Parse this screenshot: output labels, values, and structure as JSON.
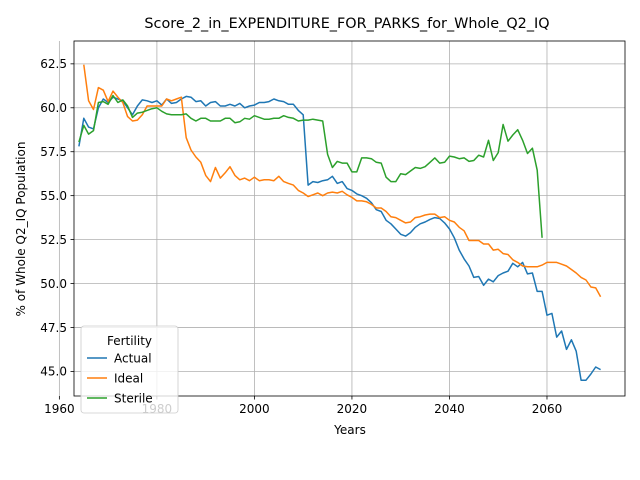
{
  "chart_data": {
    "type": "line",
    "title": "Score_2_in_EXPENDITURE_FOR_PARKS_for_Whole_Q2_IQ",
    "xlabel": "Years",
    "ylabel": "% of Whole Q2_IQ Population",
    "xlim": [
      1963,
      2076
    ],
    "ylim": [
      43.6,
      63.8
    ],
    "xticks": [
      1960,
      1980,
      2000,
      2020,
      2040,
      2060
    ],
    "yticks": [
      45.0,
      47.5,
      50.0,
      52.5,
      55.0,
      57.5,
      60.0,
      62.5
    ],
    "grid": true,
    "legend": {
      "title": "Fertility",
      "position": "lower left"
    },
    "series": [
      {
        "name": "Actual",
        "color": "#1f77b4",
        "points": [
          [
            1964,
            57.8
          ],
          [
            1965,
            59.4
          ],
          [
            1966,
            58.9
          ],
          [
            1967,
            58.8
          ],
          [
            1968,
            60.0
          ],
          [
            1969,
            60.5
          ],
          [
            1970,
            60.3
          ],
          [
            1971,
            60.6
          ],
          [
            1972,
            60.5
          ],
          [
            1973,
            60.4
          ],
          [
            1974,
            60.0
          ],
          [
            1975,
            59.6
          ],
          [
            1976,
            60.1
          ],
          [
            1977,
            60.45
          ],
          [
            1978,
            60.4
          ],
          [
            1979,
            60.3
          ],
          [
            1980,
            60.4
          ],
          [
            1981,
            60.15
          ],
          [
            1982,
            60.5
          ],
          [
            1983,
            60.25
          ],
          [
            1984,
            60.3
          ],
          [
            1985,
            60.5
          ],
          [
            1986,
            60.65
          ],
          [
            1987,
            60.6
          ],
          [
            1988,
            60.35
          ],
          [
            1989,
            60.4
          ],
          [
            1990,
            60.1
          ],
          [
            1991,
            60.3
          ],
          [
            1992,
            60.35
          ],
          [
            1993,
            60.1
          ],
          [
            1994,
            60.1
          ],
          [
            1995,
            60.2
          ],
          [
            1996,
            60.1
          ],
          [
            1997,
            60.25
          ],
          [
            1998,
            60.0
          ],
          [
            1999,
            60.1
          ],
          [
            2000,
            60.15
          ],
          [
            2001,
            60.3
          ],
          [
            2002,
            60.3
          ],
          [
            2003,
            60.35
          ],
          [
            2004,
            60.5
          ],
          [
            2005,
            60.4
          ],
          [
            2006,
            60.35
          ],
          [
            2007,
            60.2
          ],
          [
            2008,
            60.2
          ],
          [
            2009,
            59.85
          ],
          [
            2010,
            59.6
          ],
          [
            2011,
            55.6
          ],
          [
            2012,
            55.8
          ],
          [
            2013,
            55.75
          ],
          [
            2014,
            55.85
          ],
          [
            2015,
            55.9
          ],
          [
            2016,
            56.1
          ],
          [
            2017,
            55.7
          ],
          [
            2018,
            55.8
          ],
          [
            2019,
            55.4
          ],
          [
            2020,
            55.3
          ],
          [
            2021,
            55.1
          ],
          [
            2022,
            55.0
          ],
          [
            2023,
            54.85
          ],
          [
            2024,
            54.6
          ],
          [
            2025,
            54.2
          ],
          [
            2026,
            54.1
          ],
          [
            2027,
            53.6
          ],
          [
            2028,
            53.4
          ],
          [
            2029,
            53.1
          ],
          [
            2030,
            52.8
          ],
          [
            2031,
            52.7
          ],
          [
            2032,
            52.9
          ],
          [
            2033,
            53.2
          ],
          [
            2034,
            53.4
          ],
          [
            2035,
            53.5
          ],
          [
            2036,
            53.65
          ],
          [
            2037,
            53.75
          ],
          [
            2038,
            53.7
          ],
          [
            2039,
            53.45
          ],
          [
            2040,
            53.1
          ],
          [
            2041,
            52.6
          ],
          [
            2042,
            51.9
          ],
          [
            2043,
            51.4
          ],
          [
            2044,
            51.0
          ],
          [
            2045,
            50.35
          ],
          [
            2046,
            50.4
          ],
          [
            2047,
            49.9
          ],
          [
            2048,
            50.25
          ],
          [
            2049,
            50.1
          ],
          [
            2050,
            50.45
          ],
          [
            2051,
            50.6
          ],
          [
            2052,
            50.7
          ],
          [
            2053,
            51.15
          ],
          [
            2054,
            50.95
          ],
          [
            2055,
            51.2
          ],
          [
            2056,
            50.55
          ],
          [
            2057,
            50.6
          ],
          [
            2058,
            49.55
          ],
          [
            2059,
            49.55
          ],
          [
            2060,
            48.2
          ],
          [
            2061,
            48.3
          ],
          [
            2062,
            46.95
          ],
          [
            2063,
            47.3
          ],
          [
            2064,
            46.25
          ],
          [
            2065,
            46.8
          ],
          [
            2066,
            46.15
          ],
          [
            2067,
            44.5
          ],
          [
            2068,
            44.5
          ],
          [
            2069,
            44.85
          ],
          [
            2070,
            45.25
          ],
          [
            2071,
            45.1
          ]
        ]
      },
      {
        "name": "Ideal",
        "color": "#ff7f0e",
        "points": [
          [
            1965,
            62.45
          ],
          [
            1966,
            60.4
          ],
          [
            1967,
            59.9
          ],
          [
            1968,
            61.15
          ],
          [
            1969,
            61.0
          ],
          [
            1970,
            60.35
          ],
          [
            1971,
            60.95
          ],
          [
            1972,
            60.6
          ],
          [
            1973,
            60.3
          ],
          [
            1974,
            59.5
          ],
          [
            1975,
            59.25
          ],
          [
            1976,
            59.3
          ],
          [
            1977,
            59.6
          ],
          [
            1978,
            60.1
          ],
          [
            1979,
            60.1
          ],
          [
            1980,
            60.1
          ],
          [
            1981,
            60.1
          ],
          [
            1982,
            60.5
          ],
          [
            1983,
            60.4
          ],
          [
            1984,
            60.5
          ],
          [
            1985,
            60.6
          ],
          [
            1986,
            58.3
          ],
          [
            1987,
            57.6
          ],
          [
            1988,
            57.2
          ],
          [
            1989,
            56.9
          ],
          [
            1990,
            56.15
          ],
          [
            1991,
            55.8
          ],
          [
            1992,
            56.6
          ],
          [
            1993,
            56.0
          ],
          [
            1994,
            56.3
          ],
          [
            1995,
            56.65
          ],
          [
            1996,
            56.15
          ],
          [
            1997,
            55.9
          ],
          [
            1998,
            56.0
          ],
          [
            1999,
            55.85
          ],
          [
            2000,
            56.05
          ],
          [
            2001,
            55.85
          ],
          [
            2002,
            55.9
          ],
          [
            2003,
            55.9
          ],
          [
            2004,
            55.85
          ],
          [
            2005,
            56.1
          ],
          [
            2006,
            55.8
          ],
          [
            2007,
            55.7
          ],
          [
            2008,
            55.6
          ],
          [
            2009,
            55.3
          ],
          [
            2010,
            55.15
          ],
          [
            2011,
            54.95
          ],
          [
            2012,
            55.05
          ],
          [
            2013,
            55.15
          ],
          [
            2014,
            55.0
          ],
          [
            2015,
            55.15
          ],
          [
            2016,
            55.2
          ],
          [
            2017,
            55.15
          ],
          [
            2018,
            55.25
          ],
          [
            2019,
            55.05
          ],
          [
            2020,
            54.9
          ],
          [
            2021,
            54.7
          ],
          [
            2022,
            54.7
          ],
          [
            2023,
            54.65
          ],
          [
            2024,
            54.5
          ],
          [
            2025,
            54.3
          ],
          [
            2026,
            54.3
          ],
          [
            2027,
            54.1
          ],
          [
            2028,
            53.8
          ],
          [
            2029,
            53.75
          ],
          [
            2030,
            53.6
          ],
          [
            2031,
            53.45
          ],
          [
            2032,
            53.5
          ],
          [
            2033,
            53.75
          ],
          [
            2034,
            53.8
          ],
          [
            2035,
            53.9
          ],
          [
            2036,
            53.95
          ],
          [
            2037,
            53.95
          ],
          [
            2038,
            53.75
          ],
          [
            2039,
            53.8
          ],
          [
            2040,
            53.6
          ],
          [
            2041,
            53.5
          ],
          [
            2042,
            53.2
          ],
          [
            2043,
            53.0
          ],
          [
            2044,
            52.45
          ],
          [
            2045,
            52.45
          ],
          [
            2046,
            52.45
          ],
          [
            2047,
            52.25
          ],
          [
            2048,
            52.25
          ],
          [
            2049,
            51.9
          ],
          [
            2050,
            51.95
          ],
          [
            2051,
            51.7
          ],
          [
            2052,
            51.65
          ],
          [
            2053,
            51.35
          ],
          [
            2054,
            51.2
          ],
          [
            2055,
            51.0
          ],
          [
            2056,
            50.95
          ],
          [
            2057,
            50.95
          ],
          [
            2058,
            50.95
          ],
          [
            2059,
            51.05
          ],
          [
            2060,
            51.2
          ],
          [
            2061,
            51.2
          ],
          [
            2062,
            51.2
          ],
          [
            2063,
            51.1
          ],
          [
            2064,
            51.0
          ],
          [
            2065,
            50.8
          ],
          [
            2066,
            50.6
          ],
          [
            2067,
            50.35
          ],
          [
            2068,
            50.2
          ],
          [
            2069,
            49.8
          ],
          [
            2070,
            49.75
          ],
          [
            2071,
            49.25
          ]
        ]
      },
      {
        "name": "Sterile",
        "color": "#2ca02c",
        "points": [
          [
            1964,
            58.05
          ],
          [
            1965,
            59.0
          ],
          [
            1966,
            58.5
          ],
          [
            1967,
            58.7
          ],
          [
            1968,
            60.3
          ],
          [
            1969,
            60.35
          ],
          [
            1970,
            60.2
          ],
          [
            1971,
            60.7
          ],
          [
            1972,
            60.3
          ],
          [
            1973,
            60.45
          ],
          [
            1974,
            60.1
          ],
          [
            1975,
            59.45
          ],
          [
            1976,
            59.7
          ],
          [
            1977,
            59.75
          ],
          [
            1978,
            59.85
          ],
          [
            1979,
            59.95
          ],
          [
            1980,
            60.0
          ],
          [
            1981,
            59.8
          ],
          [
            1982,
            59.65
          ],
          [
            1983,
            59.6
          ],
          [
            1984,
            59.6
          ],
          [
            1985,
            59.6
          ],
          [
            1986,
            59.65
          ],
          [
            1987,
            59.4
          ],
          [
            1988,
            59.25
          ],
          [
            1989,
            59.4
          ],
          [
            1990,
            59.4
          ],
          [
            1991,
            59.25
          ],
          [
            1992,
            59.25
          ],
          [
            1993,
            59.25
          ],
          [
            1994,
            59.4
          ],
          [
            1995,
            59.4
          ],
          [
            1996,
            59.15
          ],
          [
            1997,
            59.2
          ],
          [
            1998,
            59.4
          ],
          [
            1999,
            59.35
          ],
          [
            2000,
            59.55
          ],
          [
            2001,
            59.45
          ],
          [
            2002,
            59.35
          ],
          [
            2003,
            59.35
          ],
          [
            2004,
            59.4
          ],
          [
            2005,
            59.4
          ],
          [
            2006,
            59.55
          ],
          [
            2007,
            59.45
          ],
          [
            2008,
            59.4
          ],
          [
            2009,
            59.25
          ],
          [
            2010,
            59.3
          ],
          [
            2011,
            59.3
          ],
          [
            2012,
            59.35
          ],
          [
            2013,
            59.3
          ],
          [
            2014,
            59.25
          ],
          [
            2015,
            57.35
          ],
          [
            2016,
            56.6
          ],
          [
            2017,
            56.95
          ],
          [
            2018,
            56.85
          ],
          [
            2019,
            56.85
          ],
          [
            2020,
            56.35
          ],
          [
            2021,
            56.35
          ],
          [
            2022,
            57.15
          ],
          [
            2023,
            57.15
          ],
          [
            2024,
            57.1
          ],
          [
            2025,
            56.9
          ],
          [
            2026,
            56.85
          ],
          [
            2027,
            56.05
          ],
          [
            2028,
            55.8
          ],
          [
            2029,
            55.8
          ],
          [
            2030,
            56.25
          ],
          [
            2031,
            56.2
          ],
          [
            2032,
            56.4
          ],
          [
            2033,
            56.6
          ],
          [
            2034,
            56.55
          ],
          [
            2035,
            56.65
          ],
          [
            2036,
            56.9
          ],
          [
            2037,
            57.15
          ],
          [
            2038,
            56.85
          ],
          [
            2039,
            56.9
          ],
          [
            2040,
            57.25
          ],
          [
            2041,
            57.2
          ],
          [
            2042,
            57.1
          ],
          [
            2043,
            57.15
          ],
          [
            2044,
            56.95
          ],
          [
            2045,
            57.0
          ],
          [
            2046,
            57.3
          ],
          [
            2047,
            57.2
          ],
          [
            2048,
            58.15
          ],
          [
            2049,
            57.0
          ],
          [
            2050,
            57.45
          ],
          [
            2051,
            59.05
          ],
          [
            2052,
            58.1
          ],
          [
            2053,
            58.45
          ],
          [
            2054,
            58.75
          ],
          [
            2055,
            58.15
          ],
          [
            2056,
            57.4
          ],
          [
            2057,
            57.7
          ],
          [
            2058,
            56.45
          ],
          [
            2059,
            52.6
          ]
        ]
      }
    ]
  }
}
